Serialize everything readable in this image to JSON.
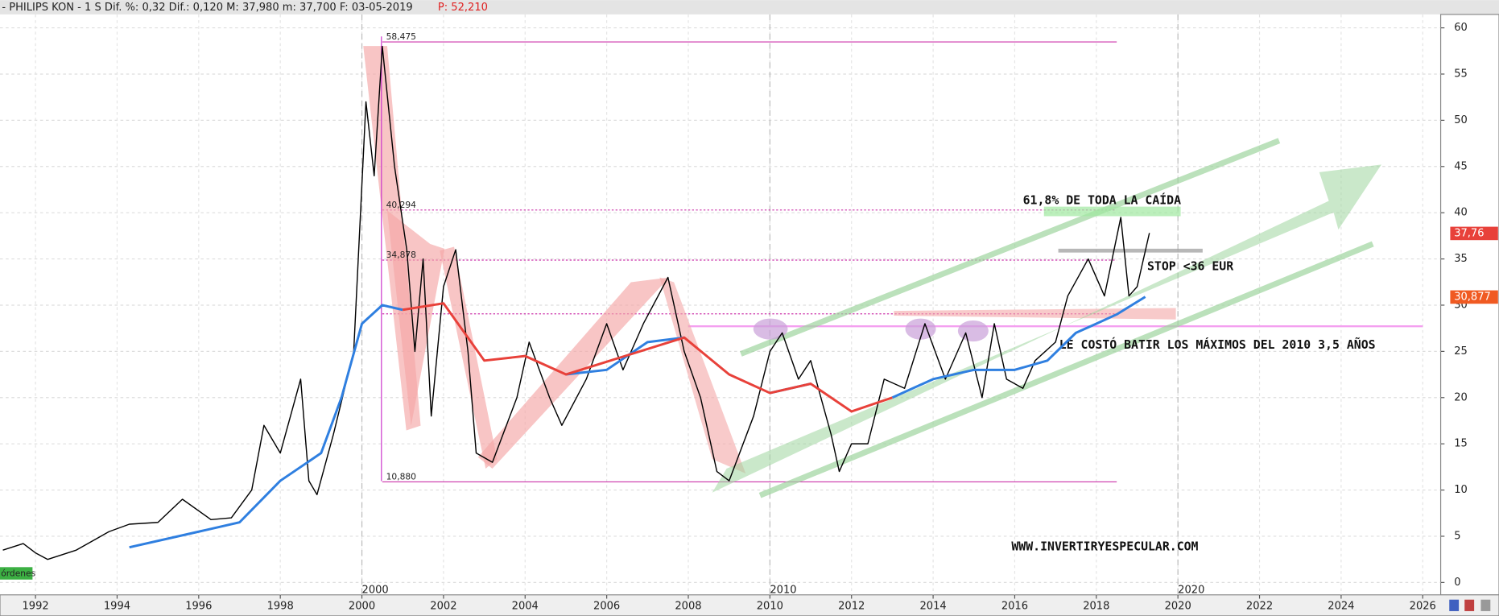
{
  "header": {
    "info": "- PHILIPS KON -  1 S Dif. %: 0,32 Dif.: 0,120 M: 37,980 m: 37,700 F: 03-05-2019",
    "price": "P: 52,210"
  },
  "chart_data": {
    "type": "line",
    "xlim": [
      1991.13,
      2026.44
    ],
    "ylim": [
      -1.34,
      61.45
    ],
    "xticks": [
      1992,
      1994,
      1996,
      1998,
      2000,
      2002,
      2004,
      2006,
      2008,
      2010,
      2012,
      2014,
      2016,
      2018,
      2020,
      2022,
      2024,
      2026
    ],
    "decade_ticks": [
      2000,
      2010,
      2020
    ],
    "yticks": [
      0,
      5,
      10,
      15,
      20,
      25,
      30,
      35,
      40,
      45,
      50,
      55,
      60
    ],
    "grid": true,
    "series": [
      {
        "color": "#000000",
        "x": [
          1991.2,
          1991.7,
          1992.0,
          1992.3,
          1993,
          1993.8,
          1994.3,
          1995,
          1995.6,
          1996.3,
          1996.8,
          1997.3,
          1997.6,
          1998,
          1998.5,
          1998.7,
          1998.9,
          1999.3,
          1999.8,
          2000.1,
          2000.3,
          2000.5,
          2000.8,
          2001.1,
          2001.3,
          2001.5,
          2001.7,
          2002.0,
          2002.3,
          2002.6,
          2002.8,
          2003.2,
          2003.8,
          2004.1,
          2004.6,
          2004.9,
          2005.5,
          2006.0,
          2006.4,
          2006.9,
          2007.5,
          2007.9,
          2008.3,
          2008.7,
          2009.0,
          2009.6,
          2010.0,
          2010.3,
          2010.7,
          2011.0,
          2011.5,
          2011.7,
          2012.0,
          2012.4,
          2012.8,
          2013.3,
          2013.8,
          2014.3,
          2014.8,
          2015.2,
          2015.5,
          2015.8,
          2016.2,
          2016.5,
          2017.0,
          2017.3,
          2017.8,
          2018.2,
          2018.6,
          2018.8,
          2019.0,
          2019.3
        ],
        "values": [
          3.5,
          4.2,
          3.2,
          2.5,
          3.5,
          5.5,
          6.3,
          6.5,
          9,
          6.8,
          7,
          10,
          17,
          14,
          22,
          11,
          9.5,
          16,
          25,
          52,
          44,
          58,
          45,
          36,
          25,
          35,
          18,
          32,
          36,
          25,
          14,
          13,
          20,
          26,
          20,
          17,
          22,
          28,
          23,
          28,
          33,
          25,
          20,
          12,
          11,
          18,
          25,
          27,
          22,
          24,
          16,
          12,
          15,
          15,
          22,
          21,
          28,
          22,
          27,
          20,
          28,
          22,
          21,
          24,
          26,
          31,
          35,
          31,
          39.5,
          31,
          32,
          37.8
        ]
      },
      {
        "color": "#2f7fe0",
        "x": [
          1994.3,
          1996,
          1997,
          1998,
          1999,
          1999.5,
          2000,
          2000.5,
          2001,
          2002,
          2003,
          2004,
          2005,
          2006,
          2007,
          2007.9,
          2009,
          2010,
          2011,
          2012,
          2013,
          2014,
          2015,
          2016,
          2016.8,
          2017.5,
          2018,
          2018.5,
          2019.2
        ],
        "values": [
          3.8,
          5.5,
          6.5,
          11,
          14,
          20,
          28,
          30,
          29.5,
          null,
          null,
          null,
          22.5,
          23,
          26,
          26.5,
          null,
          20.5,
          21.5,
          null,
          20,
          22,
          23,
          23,
          24,
          27,
          28,
          29,
          30.9
        ]
      },
      {
        "color": "#e8413a",
        "x": [
          2001,
          2002,
          2003,
          2004,
          2005,
          2007.9,
          2009,
          2010,
          2011,
          2012,
          2013
        ],
        "values": [
          29.5,
          30.2,
          24,
          24.5,
          22.5,
          26.5,
          22.5,
          20.5,
          21.5,
          18.5,
          20
        ]
      }
    ],
    "levels": [
      {
        "value": 58.475,
        "label": "58,475"
      },
      {
        "value": 40.294,
        "label": "40,294"
      },
      {
        "value": 34.878,
        "label": "34,878"
      },
      {
        "value": 10.88,
        "label": "10,880"
      }
    ],
    "support": 29.06,
    "price_tags": [
      {
        "value": 37.76,
        "label": "37,76",
        "color": "#e8413a"
      },
      {
        "value": 30.877,
        "label": "30,877",
        "color": "#f05a22"
      }
    ],
    "annotations": [
      "61,8% DE TODA LA CAÍDA",
      "STOP <36 EUR",
      "LE COSTÓ BATIR LOS MÁXIMOS DEL 2010 3,5  AÑOS",
      "WWW.INVERTIRYESPECULAR.COM"
    ],
    "badge": "órdenes"
  }
}
